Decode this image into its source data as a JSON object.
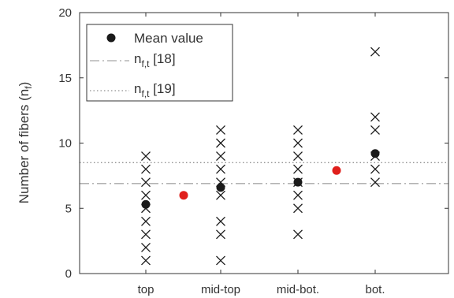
{
  "chart_data": {
    "type": "scatter",
    "categories": [
      "top",
      "mid-top",
      "mid-bot.",
      "bot."
    ],
    "ylabel": "Number of fibers (n_f)",
    "ylim": [
      0,
      20
    ],
    "yticks": [
      0,
      5,
      10,
      15,
      20
    ],
    "grid": false,
    "legend": {
      "placement": "top-left",
      "entries": [
        {
          "label": "Mean value",
          "marker": "filled-circle"
        },
        {
          "label": "n_f,t [18]",
          "line": "dash-dot"
        },
        {
          "label": "n_f,t [19]",
          "line": "dotted"
        }
      ]
    },
    "samples": [
      {
        "category": "top",
        "values": [
          1,
          2,
          3,
          4,
          5,
          6,
          7,
          8,
          9
        ]
      },
      {
        "category": "mid-top",
        "values": [
          1,
          3,
          4,
          6,
          7,
          8,
          9,
          10,
          11
        ]
      },
      {
        "category": "mid-bot.",
        "values": [
          3,
          5,
          6,
          7,
          8,
          9,
          10,
          11
        ]
      },
      {
        "category": "bot.",
        "values": [
          7,
          8,
          9,
          11,
          12,
          17
        ]
      }
    ],
    "mean_values": [
      {
        "category": "top",
        "value": 5.3
      },
      {
        "category": "mid-top",
        "value": 6.6
      },
      {
        "category": "mid-bot.",
        "value": 7.0
      },
      {
        "category": "bot.",
        "value": 9.2
      }
    ],
    "between_points": [
      {
        "between": [
          "top",
          "mid-top"
        ],
        "value": 6.0
      },
      {
        "between": [
          "mid-bot.",
          "bot."
        ],
        "value": 7.9
      }
    ],
    "reference_lines": [
      {
        "label": "n_f,t [18]",
        "value": 6.9,
        "style": "dash-dot"
      },
      {
        "label": "n_f,t [19]",
        "value": 8.5,
        "style": "dotted"
      }
    ],
    "colors": {
      "samples": "#1a1a1a",
      "mean": "#1a1a1a",
      "between": "#e0201c",
      "ref18": "#a8a8a8",
      "ref19": "#909090",
      "axis": "#333333"
    }
  }
}
